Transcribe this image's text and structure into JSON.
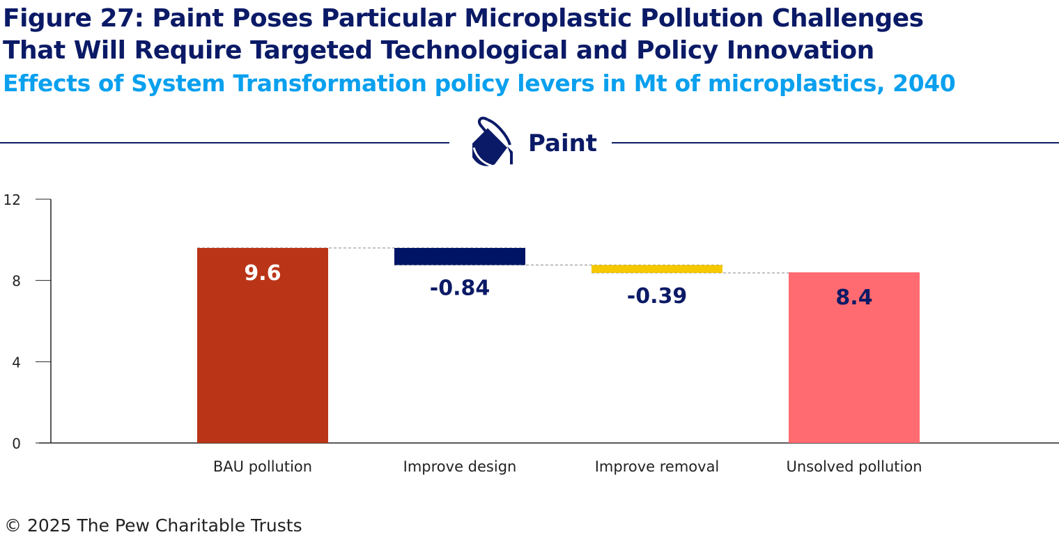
{
  "header": {
    "title_line1": "Figure 27: Paint Poses Particular Microplastic Pollution Challenges",
    "title_line2": "That Will Require Targeted Technological and Policy Innovation",
    "subtitle": "Effects of System Transformation policy levers in Mt of microplastics, 2040",
    "section_label": "Paint",
    "section_icon": "paint-bucket-icon"
  },
  "footer": {
    "copyright": "© 2025 The Pew Charitable Trusts"
  },
  "colors": {
    "title": "#0b1a66",
    "subtitle": "#0aa0ee",
    "bau": "#ba3518",
    "design": "#001466",
    "removal": "#f5c800",
    "unsolved": "#ff6b70"
  },
  "chart_data": {
    "type": "bar",
    "subtype": "waterfall",
    "title": "",
    "xlabel": "",
    "ylabel": "",
    "ylim": [
      0,
      12
    ],
    "yticks": [
      "0",
      "4",
      "8",
      "12"
    ],
    "grid": false,
    "categories": [
      "BAU pollution",
      "Improve design",
      "Improve removal",
      "Unsolved pollution"
    ],
    "values": [
      9.6,
      -0.84,
      -0.39,
      8.4
    ],
    "labels": [
      "9.6",
      "-0.84",
      "-0.39",
      "8.4"
    ],
    "bar_colors": [
      "#ba3518",
      "#001466",
      "#f5c800",
      "#ff6b70"
    ]
  }
}
